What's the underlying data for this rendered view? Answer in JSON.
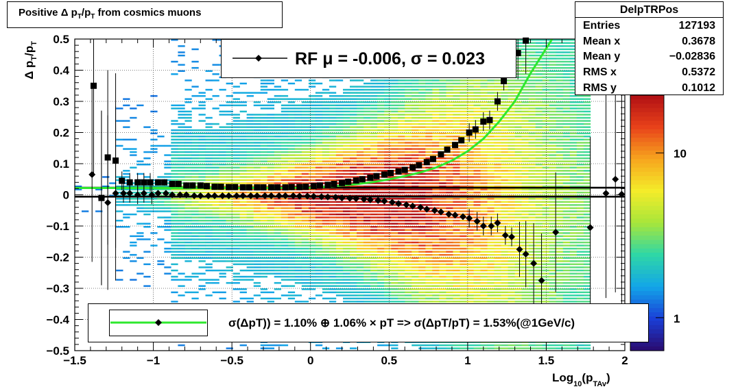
{
  "colors": {
    "fit_line": "#2ee82e",
    "markers": "#000000",
    "frame": "#000000",
    "palette": [
      "#2a0a6e",
      "#1a3fd8",
      "#12a6e8",
      "#2fd7a6",
      "#a8e63a",
      "#f4ec2a",
      "#f7a51e",
      "#e8421a",
      "#b00f14"
    ]
  },
  "title": {
    "prefix": "Positive Δ p",
    "sub1": "T",
    "mid": "/p",
    "sub2": "T",
    "suffix": " from cosmics muons"
  },
  "stats_box": {
    "name": "DelpTRPos",
    "rows": [
      {
        "label": "Entries",
        "value": "127193"
      },
      {
        "label": "Mean x",
        "value": "0.3678"
      },
      {
        "label": "Mean y",
        "value": "−0.02836"
      },
      {
        "label": "RMS x",
        "value": "0.5372"
      },
      {
        "label": "RMS y",
        "value": "0.1012"
      }
    ]
  },
  "legend_top": {
    "text": "RF μ = -0.006, σ =   0.023"
  },
  "legend_bottom": {
    "text": "σ(ΔpT)) =  1.10% ⊕  1.06% × pT => σ(ΔpT/pT) =  1.53%(@1GeV/c)"
  },
  "chart_data": {
    "type": "heatmap",
    "xlabel": "Log10(pTAv)",
    "ylabel": "Δ pT/pT",
    "xlim": [
      -1.5,
      2.0
    ],
    "ylim": [
      -0.5,
      0.5
    ],
    "x_ticks": [
      "−1.5",
      "−1",
      "−0.5",
      "0",
      "0.5",
      "1",
      "1.5",
      "2"
    ],
    "x_tick_values": [
      -1.5,
      -1,
      -0.5,
      0,
      0.5,
      1,
      1.5,
      2
    ],
    "y_ticks": [
      "0.5",
      "0.4",
      "0.3",
      "0.2",
      "0.1",
      "0",
      "−0.1",
      "−0.2",
      "−0.3",
      "−0.4",
      "−0.5"
    ],
    "y_tick_values": [
      0.5,
      0.4,
      0.3,
      0.2,
      0.1,
      0,
      -0.1,
      -0.2,
      -0.3,
      -0.4,
      -0.5
    ],
    "colorbar_labels": [
      {
        "label": "10",
        "value": 10
      },
      {
        "label": "1",
        "value": 1
      }
    ],
    "grid": true,
    "colorbar_log": true,
    "reference_lines_y": [
      0.023,
      -0.006
    ],
    "series": [
      {
        "marker": "square",
        "x": [
          -1.38,
          -1.33,
          -1.29,
          -1.24,
          -1.2,
          -1.15,
          -1.1,
          -1.06,
          -1.02,
          -0.97,
          -0.93,
          -0.88,
          -0.84,
          -0.79,
          -0.75,
          -0.7,
          -0.66,
          -0.61,
          -0.57,
          -0.52,
          -0.48,
          -0.43,
          -0.39,
          -0.34,
          -0.3,
          -0.25,
          -0.21,
          -0.16,
          -0.12,
          -0.07,
          -0.03,
          0.02,
          0.06,
          0.11,
          0.15,
          0.2,
          0.24,
          0.29,
          0.33,
          0.38,
          0.42,
          0.47,
          0.51,
          0.56,
          0.6,
          0.65,
          0.69,
          0.74,
          0.78,
          0.83,
          0.87,
          0.92,
          0.96,
          1.01,
          1.05,
          1.1,
          1.14,
          1.19,
          1.23,
          1.28,
          1.32,
          1.37
        ],
        "y": [
          0.35,
          -0.01,
          0.12,
          0.11,
          0.045,
          0.04,
          0.04,
          0.04,
          0.04,
          0.04,
          0.04,
          0.035,
          0.035,
          0.03,
          0.03,
          0.03,
          0.028,
          0.026,
          0.026,
          0.025,
          0.025,
          0.024,
          0.024,
          0.024,
          0.024,
          0.024,
          0.024,
          0.024,
          0.025,
          0.025,
          0.026,
          0.028,
          0.03,
          0.032,
          0.035,
          0.038,
          0.042,
          0.046,
          0.05,
          0.055,
          0.06,
          0.065,
          0.07,
          0.075,
          0.08,
          0.088,
          0.095,
          0.105,
          0.115,
          0.13,
          0.145,
          0.16,
          0.175,
          0.2,
          0.21,
          0.235,
          0.24,
          0.3,
          0.365,
          0.405,
          0.455,
          0.495
        ]
      },
      {
        "marker": "diamond",
        "x": [
          -1.39,
          -1.33,
          -1.29,
          -1.24,
          -1.19,
          -1.15,
          -1.1,
          -1.06,
          -1.01,
          -0.97,
          -0.92,
          -0.88,
          -0.83,
          -0.79,
          -0.74,
          -0.7,
          -0.65,
          -0.61,
          -0.56,
          -0.52,
          -0.47,
          -0.43,
          -0.38,
          -0.34,
          -0.29,
          -0.25,
          -0.2,
          -0.16,
          -0.11,
          -0.07,
          -0.02,
          0.02,
          0.07,
          0.11,
          0.16,
          0.2,
          0.25,
          0.29,
          0.34,
          0.38,
          0.43,
          0.47,
          0.52,
          0.56,
          0.61,
          0.65,
          0.7,
          0.74,
          0.79,
          0.83,
          0.88,
          0.92,
          0.97,
          1.01,
          1.06,
          1.1,
          1.15,
          1.19,
          1.24,
          1.28,
          1.33,
          1.37,
          1.42,
          1.47,
          1.56,
          1.78,
          1.88,
          1.94,
          1.98
        ],
        "y": [
          0.065,
          -0.01,
          -0.025,
          0.005,
          0.005,
          0.005,
          0.0,
          0.005,
          0.0,
          0.005,
          0.005,
          0.0,
          0.0,
          0.0,
          -0.003,
          -0.003,
          -0.003,
          -0.003,
          -0.003,
          -0.003,
          -0.003,
          -0.003,
          -0.003,
          -0.003,
          -0.003,
          -0.003,
          -0.003,
          -0.003,
          -0.003,
          -0.004,
          -0.004,
          -0.005,
          -0.006,
          -0.007,
          -0.008,
          -0.01,
          -0.011,
          -0.012,
          -0.014,
          -0.016,
          -0.018,
          -0.02,
          -0.024,
          -0.028,
          -0.032,
          -0.036,
          -0.04,
          -0.046,
          -0.05,
          -0.055,
          -0.062,
          -0.065,
          -0.07,
          -0.075,
          -0.085,
          -0.1,
          -0.1,
          -0.09,
          -0.13,
          -0.135,
          -0.175,
          -0.19,
          -0.22,
          -0.275,
          -0.12,
          -0.105,
          0.005,
          0.05,
          0.002
        ]
      }
    ],
    "fit_curve": {
      "x": [
        -1.5,
        -1.2,
        -1.0,
        -0.8,
        -0.6,
        -0.4,
        -0.2,
        0.0,
        0.1,
        0.2,
        0.3,
        0.4,
        0.5,
        0.6,
        0.7,
        0.8,
        0.9,
        1.0,
        1.1,
        1.2,
        1.3,
        1.4,
        1.5,
        1.55
      ],
      "y": [
        0.022,
        0.022,
        0.022,
        0.022,
        0.022,
        0.022,
        0.022,
        0.023,
        0.026,
        0.03,
        0.035,
        0.041,
        0.05,
        0.06,
        0.072,
        0.088,
        0.11,
        0.14,
        0.18,
        0.235,
        0.3,
        0.39,
        0.47,
        0.51
      ]
    }
  }
}
